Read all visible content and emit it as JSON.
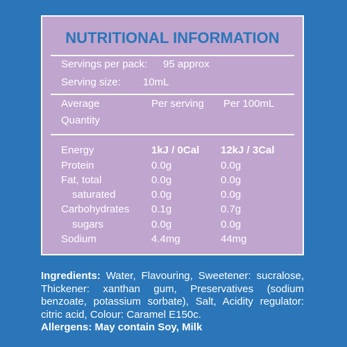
{
  "panel": {
    "title": "NUTRITIONAL INFORMATION",
    "servings_per_pack_label": "Servings per pack:",
    "servings_per_pack_value": "95 approx",
    "serving_size_label": "Serving size:",
    "serving_size_value": "10mL",
    "headers": {
      "col1_line1": "Average",
      "col1_line2": "Quantity",
      "col2": "Per serving",
      "col3": "Per 100mL"
    },
    "rows": [
      {
        "label": "Energy",
        "per_serving": "1kJ / 0Cal",
        "per_100": "12kJ / 3Cal"
      },
      {
        "label": "Protein",
        "per_serving": "0.0g",
        "per_100": "0.0g"
      },
      {
        "label": "Fat, total",
        "per_serving": "0.0g",
        "per_100": "0.0g"
      },
      {
        "label": "saturated",
        "per_serving": "0.0g",
        "per_100": "0.0g"
      },
      {
        "label": "Carbohydrates",
        "per_serving": "0.1g",
        "per_100": "0.7g"
      },
      {
        "label": "sugars",
        "per_serving": "0.0g",
        "per_100": "0.0g"
      },
      {
        "label": "Sodium",
        "per_serving": "4.4mg",
        "per_100": "44mg"
      }
    ]
  },
  "ingredients": {
    "label": "Ingredients:",
    "text": "Water, Flavouring, Sweetener: sucralose, Thickener: xanthan gum, Preservatives (sodium benzoate, potassium sorbate), Salt, Acidity regulator: citric acid, Colour: Caramel E150c.",
    "allergens_label": "Allergens:",
    "allergens_text": "May contain Soy, Milk"
  },
  "colors": {
    "background": "#2a76b8",
    "panel": "#c0a5cf",
    "title": "#2a76b8",
    "text": "#ffffff"
  }
}
